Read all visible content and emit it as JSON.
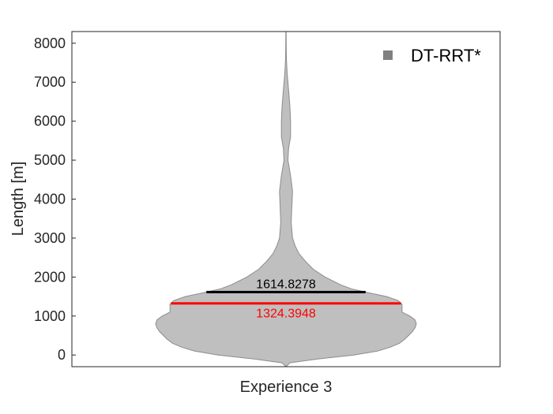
{
  "chart_data": {
    "type": "violin",
    "xlabel": "Experience 3",
    "ylabel": "Length [m]",
    "ylim": [
      -300,
      8300
    ],
    "yticks": [
      "0",
      "1000",
      "2000",
      "3000",
      "4000",
      "5000",
      "6000",
      "7000",
      "8000"
    ],
    "grid": false,
    "legend": {
      "position": "top-right",
      "entries": [
        "DT-RRT*"
      ]
    },
    "series": [
      {
        "name": "DT-RRT*",
        "category": "Experience 3",
        "min": -300,
        "max": 8300,
        "density_profile": [
          {
            "y": -300,
            "w": 0.0
          },
          {
            "y": -200,
            "w": 0.03
          },
          {
            "y": -100,
            "w": 0.25
          },
          {
            "y": 0,
            "w": 0.52
          },
          {
            "y": 100,
            "w": 0.7
          },
          {
            "y": 200,
            "w": 0.8
          },
          {
            "y": 300,
            "w": 0.87
          },
          {
            "y": 400,
            "w": 0.91
          },
          {
            "y": 500,
            "w": 0.94
          },
          {
            "y": 600,
            "w": 0.97
          },
          {
            "y": 700,
            "w": 0.99
          },
          {
            "y": 800,
            "w": 1.0
          },
          {
            "y": 900,
            "w": 0.99
          },
          {
            "y": 1000,
            "w": 0.95
          },
          {
            "y": 1100,
            "w": 0.89
          },
          {
            "y": 1200,
            "w": 0.89
          },
          {
            "y": 1300,
            "w": 0.89
          },
          {
            "y": 1400,
            "w": 0.86
          },
          {
            "y": 1500,
            "w": 0.77
          },
          {
            "y": 1600,
            "w": 0.63
          },
          {
            "y": 1700,
            "w": 0.5
          },
          {
            "y": 1800,
            "w": 0.42
          },
          {
            "y": 2000,
            "w": 0.3
          },
          {
            "y": 2200,
            "w": 0.21
          },
          {
            "y": 2400,
            "w": 0.15
          },
          {
            "y": 2600,
            "w": 0.1
          },
          {
            "y": 2800,
            "w": 0.07
          },
          {
            "y": 3000,
            "w": 0.05
          },
          {
            "y": 3400,
            "w": 0.04
          },
          {
            "y": 3800,
            "w": 0.045
          },
          {
            "y": 4200,
            "w": 0.05
          },
          {
            "y": 4600,
            "w": 0.035
          },
          {
            "y": 5000,
            "w": 0.015
          },
          {
            "y": 5300,
            "w": 0.02
          },
          {
            "y": 5600,
            "w": 0.035
          },
          {
            "y": 6000,
            "w": 0.035
          },
          {
            "y": 6400,
            "w": 0.03
          },
          {
            "y": 6800,
            "w": 0.02
          },
          {
            "y": 7200,
            "w": 0.01
          },
          {
            "y": 7600,
            "w": 0.003
          },
          {
            "y": 8000,
            "w": 0.002
          },
          {
            "y": 8300,
            "w": 0.001
          }
        ],
        "mean": 1614.8278,
        "median": 1324.3948,
        "mean_label": "1614.8278",
        "median_label": "1324.3948"
      }
    ]
  },
  "colors": {
    "violin_fill": "#bfbfbf",
    "violin_edge": "#8c8c8c",
    "legend_marker": "#808080",
    "mean_line": "#000000",
    "median_line": "#ff0000",
    "axis": "#262626"
  }
}
